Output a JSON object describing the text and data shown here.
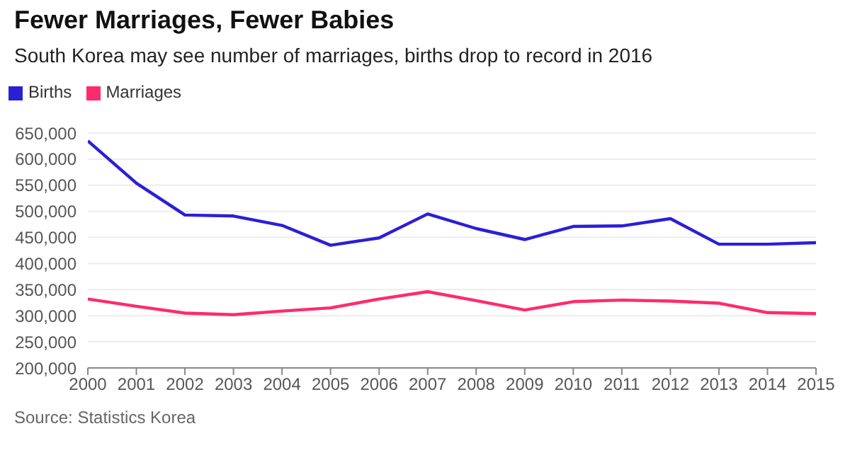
{
  "chart_data": {
    "type": "line",
    "title": "Fewer Marriages, Fewer Babies",
    "subtitle": "South Korea may see number of marriages, births drop to record in 2016",
    "annotations": [
      "Source: Statistics Korea"
    ],
    "x": [
      2000,
      2001,
      2002,
      2003,
      2004,
      2005,
      2006,
      2007,
      2008,
      2009,
      2010,
      2011,
      2012,
      2013,
      2014,
      2015
    ],
    "series": [
      {
        "name": "Births",
        "color": "#2b1fd6",
        "values": [
          635000,
          554000,
          493000,
          491000,
          473000,
          435000,
          449000,
          495000,
          467000,
          446000,
          471000,
          472000,
          486000,
          437000,
          437000,
          440000
        ]
      },
      {
        "name": "Marriages",
        "color": "#ff2a6d",
        "values": [
          332000,
          318000,
          305000,
          302000,
          309000,
          315000,
          332000,
          346000,
          329000,
          311000,
          327000,
          330000,
          328000,
          324000,
          306000,
          304000
        ]
      }
    ],
    "xlim": [
      2000,
      2015
    ],
    "xticks": [
      2000,
      2001,
      2002,
      2003,
      2004,
      2005,
      2006,
      2007,
      2008,
      2009,
      2010,
      2011,
      2012,
      2013,
      2014,
      2015
    ],
    "ylim": [
      200000,
      650000
    ],
    "yticks": [
      {
        "value": 200000,
        "label": "200,000"
      },
      {
        "value": 250000,
        "label": "250,000"
      },
      {
        "value": 300000,
        "label": "300,000"
      },
      {
        "value": 350000,
        "label": "350,000"
      },
      {
        "value": 400000,
        "label": "400,000"
      },
      {
        "value": 450000,
        "label": "450,000"
      },
      {
        "value": 500000,
        "label": "500,000"
      },
      {
        "value": 550000,
        "label": "550,000"
      },
      {
        "value": 600000,
        "label": "600,000"
      },
      {
        "value": 650000,
        "label": "650,000"
      }
    ],
    "grid": "y",
    "legend": "top left",
    "marker": "none",
    "line_style": "solid"
  }
}
